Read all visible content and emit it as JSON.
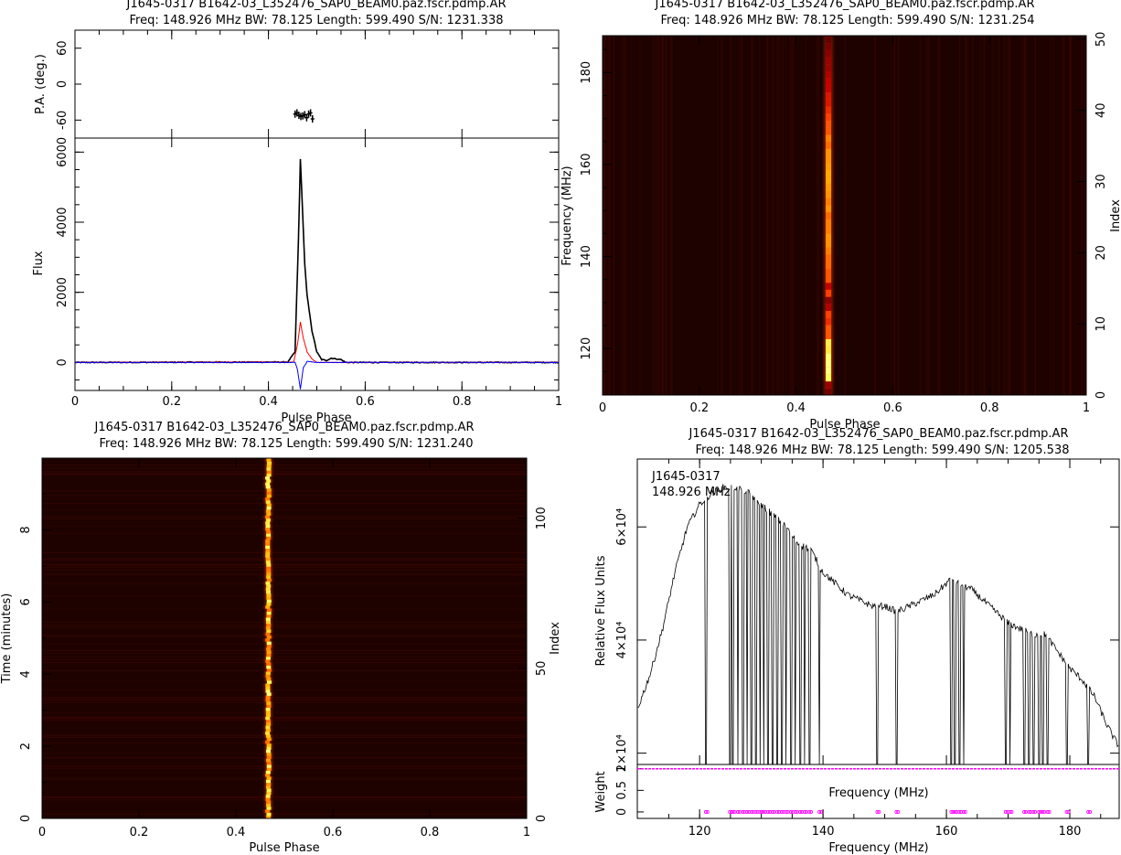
{
  "chart_data": [
    {
      "id": "profile",
      "type": "line",
      "title": "J1645-0317 B1642-03_L352476_SAP0_BEAM0.paz.fscr.pdmp.AR",
      "subtitle": "Freq: 148.926 MHz BW: 78.125 Length: 599.490 S/N: 1231.338",
      "xlabel": "Pulse Phase",
      "xlim": [
        0,
        1
      ],
      "x_ticks": [
        "0",
        "0.2",
        "0.4",
        "0.6",
        "0.8",
        "1"
      ],
      "pa": {
        "ylabel": "P.A. (deg.)",
        "ylim": [
          -90,
          90
        ],
        "y_ticks": [
          "60",
          "0",
          "-60"
        ],
        "points": [
          [
            0.455,
            -50
          ],
          [
            0.459,
            -48
          ],
          [
            0.463,
            -52
          ],
          [
            0.467,
            -54
          ],
          [
            0.471,
            -53
          ],
          [
            0.475,
            -51
          ],
          [
            0.479,
            -56
          ],
          [
            0.483,
            -50
          ],
          [
            0.487,
            -48
          ],
          [
            0.491,
            -58
          ]
        ]
      },
      "flux": {
        "ylabel": "Flux",
        "ylim": [
          -800,
          6400
        ],
        "y_ticks": [
          "0",
          "2000",
          "4000",
          "6000"
        ],
        "series": [
          {
            "color": "#000000",
            "x": [
              0,
              0.44,
              0.455,
              0.462,
              0.466,
              0.47,
              0.475,
              0.48,
              0.49,
              0.5,
              0.51,
              0.52,
              0.53,
              0.55,
              0.56,
              1
            ],
            "values": [
              0,
              10,
              300,
              3500,
              5800,
              4500,
              2800,
              1900,
              900,
              300,
              80,
              60,
              120,
              80,
              0,
              0
            ]
          },
          {
            "color": "#ff0000",
            "x": [
              0,
              0.452,
              0.46,
              0.466,
              0.472,
              0.48,
              0.49,
              0.5,
              1
            ],
            "values": [
              0,
              10,
              500,
              1150,
              700,
              300,
              100,
              0,
              0
            ]
          },
          {
            "color": "#0000ff",
            "x": [
              0,
              0.455,
              0.46,
              0.466,
              0.472,
              0.48,
              0.5,
              1
            ],
            "values": [
              0,
              0,
              -200,
              -760,
              -150,
              30,
              0,
              0
            ]
          }
        ]
      }
    },
    {
      "id": "freq-phase",
      "type": "heatmap",
      "title": "J1645-0317 B1642-03_L352476_SAP0_BEAM0.paz.fscr.pdmp.AR",
      "subtitle": "Freq: 148.926 MHz BW: 78.125 Length: 599.490 S/N: 1231.254",
      "xlabel": "Pulse Phase",
      "ylabel": "Frequency (MHz)",
      "ylabel_right": "Index",
      "xlim": [
        0,
        1
      ],
      "ylim": [
        109.9,
        188.0
      ],
      "x_ticks": [
        "0",
        "0.2",
        "0.4",
        "0.6",
        "0.8",
        "1"
      ],
      "y_ticks": [
        "120",
        "140",
        "160",
        "180"
      ],
      "y2_ticks": [
        "0",
        "10",
        "20",
        "30",
        "40",
        "50"
      ],
      "pulse_phase_center": 0.467,
      "channel_intensity": [
        0.15,
        0.25,
        0.95,
        1.0,
        1.0,
        0.98,
        0.9,
        0.92,
        0.55,
        0.55,
        0.45,
        0.5,
        0.3,
        0.2,
        0.5,
        0.35,
        0.55,
        0.55,
        0.6,
        0.6,
        0.65,
        0.7,
        0.7,
        0.65,
        0.65,
        0.6,
        0.7,
        0.65,
        0.7,
        0.72,
        0.75,
        0.75,
        0.72,
        0.7,
        0.7,
        0.6,
        0.65,
        0.55,
        0.55,
        0.5,
        0.45,
        0.4,
        0.4,
        0.35,
        0.35,
        0.3,
        0.25,
        0.25,
        0.2,
        0.15,
        0.1
      ]
    },
    {
      "id": "time-phase",
      "type": "heatmap",
      "title": "J1645-0317 B1642-03_L352476_SAP0_BEAM0.paz.fscr.pdmp.AR",
      "subtitle": "Freq: 148.926 MHz BW: 78.125 Length: 599.490 S/N: 1231.240",
      "xlabel": "Pulse Phase",
      "ylabel": "Time (minutes)",
      "ylabel_right": "Index",
      "xlim": [
        0,
        1
      ],
      "ylim": [
        0,
        9.99
      ],
      "x_ticks": [
        "0",
        "0.2",
        "0.4",
        "0.6",
        "0.8",
        "1"
      ],
      "y_ticks": [
        "0",
        "2",
        "4",
        "6",
        "8"
      ],
      "y2_ticks": [
        "0",
        "50",
        "100"
      ],
      "pulse_phase_center": 0.467,
      "subints": 120
    },
    {
      "id": "bandpass",
      "type": "line",
      "title": "J1645-0317 B1642-03_L352476_SAP0_BEAM0.paz.fscr.pdmp.AR",
      "subtitle": "Freq: 148.926 MHz BW: 78.125 Length: 599.490 S/N: 1205.538",
      "annotation": [
        "J1645-0317",
        "148.926 MHz"
      ],
      "xlabel": "Frequency (MHz)",
      "ylabel": "Relative Flux Units",
      "xlim": [
        109.9,
        188.0
      ],
      "ylim": [
        18000,
        72000
      ],
      "x_ticks": [
        "120",
        "140",
        "160",
        "180"
      ],
      "y_ticks": [
        "2×10⁴",
        "4×10⁴",
        "6×10⁴"
      ],
      "y_tick_values": [
        20000,
        40000,
        60000
      ],
      "spectrum": {
        "x": [
          110,
          112,
          114,
          116,
          118,
          119,
          120,
          121,
          122,
          124,
          126,
          128,
          130,
          132,
          134,
          136,
          138,
          140,
          142,
          144,
          146,
          148,
          150,
          152,
          154,
          156,
          158,
          160,
          161,
          162,
          164,
          166,
          168,
          170,
          172,
          174,
          176,
          178,
          180,
          182,
          184,
          186,
          188
        ],
        "values": [
          28000,
          34000,
          42000,
          52000,
          60000,
          62000,
          64000,
          65000,
          66000,
          67000,
          67000,
          66000,
          64000,
          62000,
          60000,
          57000,
          56000,
          52000,
          50000,
          48000,
          47000,
          46000,
          46000,
          45000,
          46000,
          47000,
          48000,
          50000,
          51000,
          50000,
          49000,
          47000,
          45000,
          43000,
          42000,
          41000,
          41000,
          38000,
          35000,
          33000,
          30000,
          25000,
          21000
        ]
      },
      "flagged_channels": [
        121.0,
        124.9,
        125.4,
        126.2,
        127.0,
        127.7,
        128.4,
        129.1,
        129.8,
        130.4,
        131.1,
        131.8,
        132.6,
        133.3,
        134.0,
        134.8,
        135.5,
        136.3,
        137.0,
        137.8,
        139.4,
        148.8,
        151.9,
        160.8,
        161.4,
        162.1,
        162.8,
        169.6,
        170.3,
        172.6,
        173.4,
        174.1,
        175.0,
        175.6,
        176.4,
        179.5,
        183.0
      ],
      "weight": {
        "ylabel": "Weight",
        "ylim": [
          -0.15,
          1.1
        ],
        "y_ticks": [
          "0",
          "0.5",
          "1"
        ],
        "xlabel_inner": "Frequency (MHz)",
        "color": "#ff00ff"
      }
    }
  ]
}
